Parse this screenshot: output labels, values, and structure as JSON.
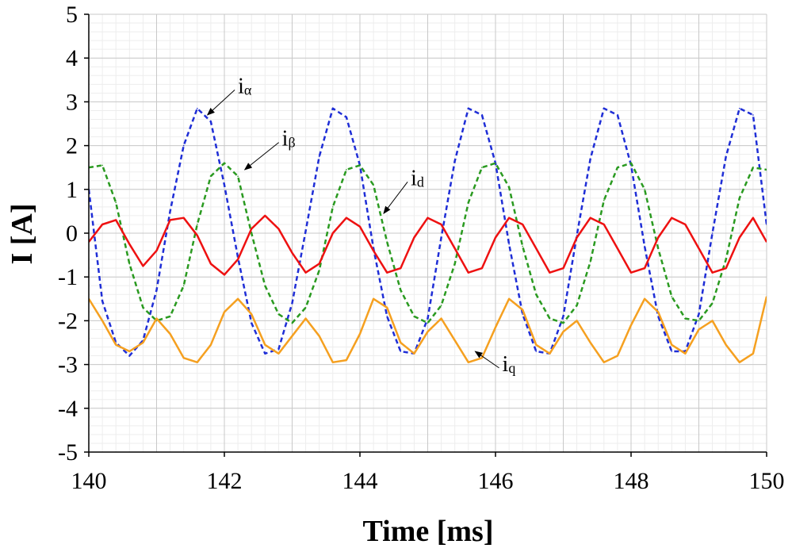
{
  "chart_data": {
    "type": "line",
    "xlabel": "Time [ms]",
    "ylabel": "I [A]",
    "xlim": [
      140,
      150
    ],
    "ylim": [
      -5,
      5
    ],
    "xticks": [
      "140",
      "142",
      "144",
      "146",
      "148",
      "150"
    ],
    "yticks": [
      "5",
      "4",
      "3",
      "2",
      "1",
      "0",
      "-1",
      "-2",
      "-3",
      "-4",
      "-5"
    ],
    "grid": true,
    "series": [
      {
        "name": "iα",
        "color": "#1f2ed6",
        "dash": "dashed",
        "x": [
          140.0,
          140.2,
          140.4,
          140.6,
          140.8,
          141.0,
          141.2,
          141.4,
          141.6,
          141.8,
          142.0,
          142.2,
          142.4,
          142.6,
          142.8,
          143.0,
          143.2,
          143.4,
          143.6,
          143.8,
          144.0,
          144.2,
          144.4,
          144.6,
          144.8,
          145.0,
          145.2,
          145.4,
          145.6,
          145.8,
          146.0,
          146.2,
          146.4,
          146.6,
          146.8,
          147.0,
          147.2,
          147.4,
          147.6,
          147.8,
          148.0,
          148.2,
          148.4,
          148.6,
          148.8,
          149.0,
          149.2,
          149.4,
          149.6,
          149.8,
          150.0
        ],
        "values": [
          1.0,
          -1.55,
          -2.5,
          -2.8,
          -2.45,
          -1.3,
          0.5,
          2.0,
          2.85,
          2.55,
          1.1,
          -0.55,
          -2.05,
          -2.75,
          -2.65,
          -1.6,
          0.05,
          1.75,
          2.85,
          2.65,
          1.55,
          -0.35,
          -1.9,
          -2.7,
          -2.75,
          -1.95,
          -0.1,
          1.65,
          2.85,
          2.7,
          1.6,
          -0.25,
          -1.85,
          -2.7,
          -2.75,
          -1.9,
          -0.05,
          1.7,
          2.85,
          2.7,
          1.55,
          -0.3,
          -1.9,
          -2.7,
          -2.7,
          -1.85,
          0.0,
          1.75,
          2.85,
          2.7,
          0.2
        ]
      },
      {
        "name": "iβ",
        "color": "#2a9a20",
        "dash": "dashed",
        "x": [
          140.0,
          140.2,
          140.4,
          140.6,
          140.8,
          141.0,
          141.2,
          141.4,
          141.6,
          141.8,
          142.0,
          142.2,
          142.4,
          142.6,
          142.8,
          143.0,
          143.2,
          143.4,
          143.6,
          143.8,
          144.0,
          144.2,
          144.4,
          144.6,
          144.8,
          145.0,
          145.2,
          145.4,
          145.6,
          145.8,
          146.0,
          146.2,
          146.4,
          146.6,
          146.8,
          147.0,
          147.2,
          147.4,
          147.6,
          147.8,
          148.0,
          148.2,
          148.4,
          148.6,
          148.8,
          149.0,
          149.2,
          149.4,
          149.6,
          149.8,
          150.0
        ],
        "values": [
          1.5,
          1.55,
          0.7,
          -0.7,
          -1.7,
          -2.0,
          -1.9,
          -1.2,
          0.2,
          1.3,
          1.6,
          1.3,
          0.0,
          -1.2,
          -1.85,
          -2.05,
          -1.7,
          -0.85,
          0.6,
          1.45,
          1.55,
          1.1,
          -0.2,
          -1.3,
          -1.9,
          -2.05,
          -1.65,
          -0.7,
          0.7,
          1.5,
          1.6,
          1.05,
          -0.3,
          -1.4,
          -1.95,
          -2.05,
          -1.65,
          -0.65,
          0.75,
          1.5,
          1.6,
          1.0,
          -0.35,
          -1.45,
          -1.95,
          -2.0,
          -1.6,
          -0.6,
          0.8,
          1.5,
          1.45
        ]
      },
      {
        "name": "id",
        "color": "#ee1111",
        "dash": "solid",
        "x": [
          140.0,
          140.2,
          140.4,
          140.6,
          140.8,
          141.0,
          141.2,
          141.4,
          141.6,
          141.8,
          142.0,
          142.2,
          142.4,
          142.6,
          142.8,
          143.0,
          143.2,
          143.4,
          143.6,
          143.8,
          144.0,
          144.2,
          144.4,
          144.6,
          144.8,
          145.0,
          145.2,
          145.4,
          145.6,
          145.8,
          146.0,
          146.2,
          146.4,
          146.6,
          146.8,
          147.0,
          147.2,
          147.4,
          147.6,
          147.8,
          148.0,
          148.2,
          148.4,
          148.6,
          148.8,
          149.0,
          149.2,
          149.4,
          149.6,
          149.8,
          150.0
        ],
        "values": [
          -0.2,
          0.2,
          0.3,
          -0.25,
          -0.75,
          -0.4,
          0.3,
          0.35,
          -0.05,
          -0.7,
          -0.95,
          -0.6,
          0.1,
          0.4,
          0.1,
          -0.45,
          -0.9,
          -0.7,
          0.0,
          0.35,
          0.15,
          -0.4,
          -0.9,
          -0.8,
          -0.1,
          0.35,
          0.2,
          -0.35,
          -0.9,
          -0.8,
          -0.1,
          0.35,
          0.2,
          -0.35,
          -0.9,
          -0.8,
          -0.1,
          0.35,
          0.2,
          -0.35,
          -0.9,
          -0.8,
          -0.1,
          0.35,
          0.2,
          -0.35,
          -0.9,
          -0.8,
          -0.1,
          0.35,
          -0.2
        ]
      },
      {
        "name": "iq",
        "color": "#f5a020",
        "dash": "solid",
        "x": [
          140.0,
          140.2,
          140.4,
          140.6,
          140.8,
          141.0,
          141.2,
          141.4,
          141.6,
          141.8,
          142.0,
          142.2,
          142.4,
          142.6,
          142.8,
          143.0,
          143.2,
          143.4,
          143.6,
          143.8,
          144.0,
          144.2,
          144.4,
          144.6,
          144.8,
          145.0,
          145.2,
          145.4,
          145.6,
          145.8,
          146.0,
          146.2,
          146.4,
          146.6,
          146.8,
          147.0,
          147.2,
          147.4,
          147.6,
          147.8,
          148.0,
          148.2,
          148.4,
          148.6,
          148.8,
          149.0,
          149.2,
          149.4,
          149.6,
          149.8,
          150.0
        ],
        "values": [
          -1.5,
          -2.0,
          -2.55,
          -2.7,
          -2.5,
          -1.95,
          -2.3,
          -2.85,
          -2.95,
          -2.55,
          -1.8,
          -1.5,
          -1.85,
          -2.55,
          -2.75,
          -2.35,
          -1.95,
          -2.35,
          -2.95,
          -2.9,
          -2.3,
          -1.5,
          -1.7,
          -2.5,
          -2.75,
          -2.25,
          -1.95,
          -2.45,
          -2.95,
          -2.85,
          -2.15,
          -1.5,
          -1.75,
          -2.55,
          -2.75,
          -2.25,
          -2.0,
          -2.5,
          -2.95,
          -2.8,
          -2.1,
          -1.5,
          -1.8,
          -2.55,
          -2.75,
          -2.2,
          -2.0,
          -2.55,
          -2.95,
          -2.75,
          -1.45
        ]
      }
    ],
    "annotations": [
      {
        "main": "i",
        "sub": "α",
        "x": 142.2,
        "y": 3.2,
        "arrow_to_x": 141.75,
        "arrow_to_y": 2.7
      },
      {
        "main": "i",
        "sub": "β",
        "x": 142.85,
        "y": 2.0,
        "arrow_to_x": 142.3,
        "arrow_to_y": 1.45
      },
      {
        "main": "i",
        "sub": "d",
        "x": 144.75,
        "y": 1.1,
        "arrow_to_x": 144.35,
        "arrow_to_y": 0.45
      },
      {
        "main": "i",
        "sub": "q",
        "x": 146.1,
        "y": -3.15,
        "arrow_to_x": 145.7,
        "arrow_to_y": -2.7
      }
    ]
  }
}
